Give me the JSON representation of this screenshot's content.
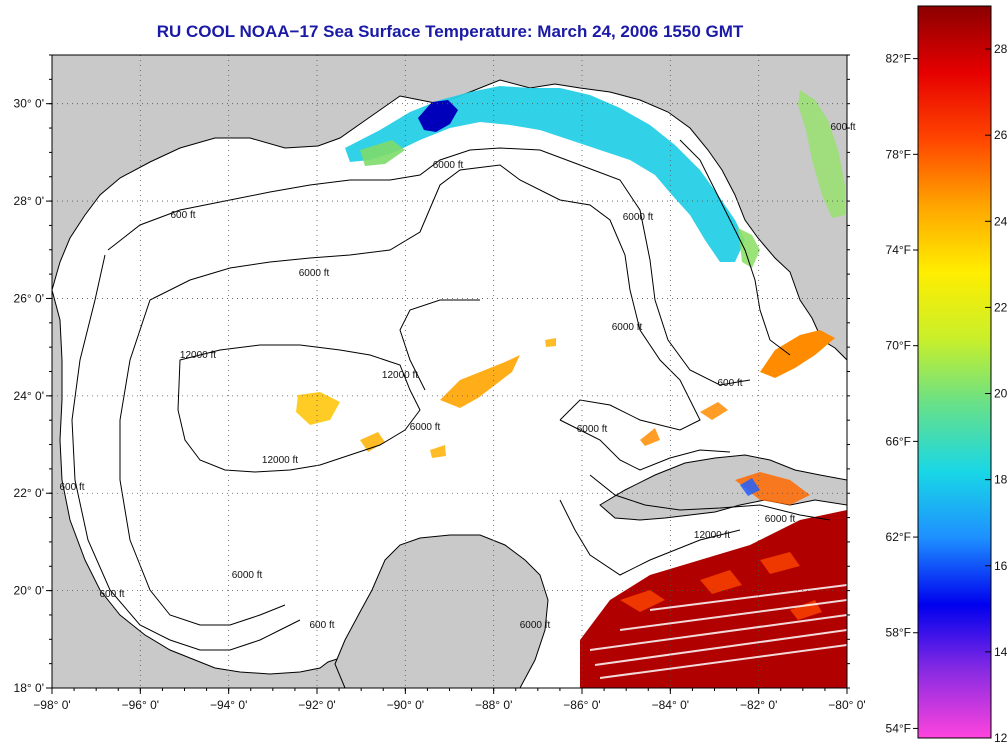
{
  "title": "RU COOL  NOAA−17  Sea Surface Temperature:  March 24, 2006 1550 GMT",
  "map": {
    "lon_range": [
      -98,
      -80
    ],
    "lat_range": [
      18,
      31
    ],
    "lon_ticks": [
      "−98° 0'",
      "−96° 0'",
      "−94° 0'",
      "−92° 0'",
      "−90° 0'",
      "−88° 0'",
      "−86° 0'",
      "−84° 0'",
      "−82° 0'",
      "−80° 0'"
    ],
    "lat_ticks": [
      "18° 0'",
      "20° 0'",
      "22° 0'",
      "24° 0'",
      "26° 0'",
      "28° 0'",
      "30° 0'"
    ],
    "grid": true,
    "land_color": "#c9c9c9",
    "ocean_color": "#ffffff",
    "contour_labels": [
      {
        "text": "600 ft"
      },
      {
        "text": "6000 ft"
      },
      {
        "text": "6000 ft"
      },
      {
        "text": "600 ft"
      },
      {
        "text": "6000 ft"
      },
      {
        "text": "12000 ft"
      },
      {
        "text": "12000 ft"
      },
      {
        "text": "12000 ft"
      },
      {
        "text": "6000 ft"
      },
      {
        "text": "6000 ft"
      },
      {
        "text": "600 ft"
      },
      {
        "text": "600 ft"
      },
      {
        "text": "6000 ft"
      },
      {
        "text": "6000 ft"
      },
      {
        "text": "600 ft"
      },
      {
        "text": "12000 ft"
      },
      {
        "text": "6000 ft"
      },
      {
        "text": "6000 ft"
      },
      {
        "text": "600 ft"
      }
    ]
  },
  "colorbar": {
    "celsius_labels": [
      "12°C",
      "14°C",
      "16°C",
      "18°C",
      "20°C",
      "22°C",
      "24°C",
      "26°C",
      "28°C"
    ],
    "fahrenheit_labels": [
      "54°F",
      "58°F",
      "62°F",
      "66°F",
      "70°F",
      "74°F",
      "78°F",
      "82°F"
    ],
    "gradient_stops": [
      "#ff44dd",
      "#8a2be2",
      "#0000ee",
      "#1e8fff",
      "#19d7e6",
      "#66e08a",
      "#c9ef2a",
      "#ffee00",
      "#ffa500",
      "#ff4500",
      "#e60000",
      "#8b0000"
    ]
  }
}
